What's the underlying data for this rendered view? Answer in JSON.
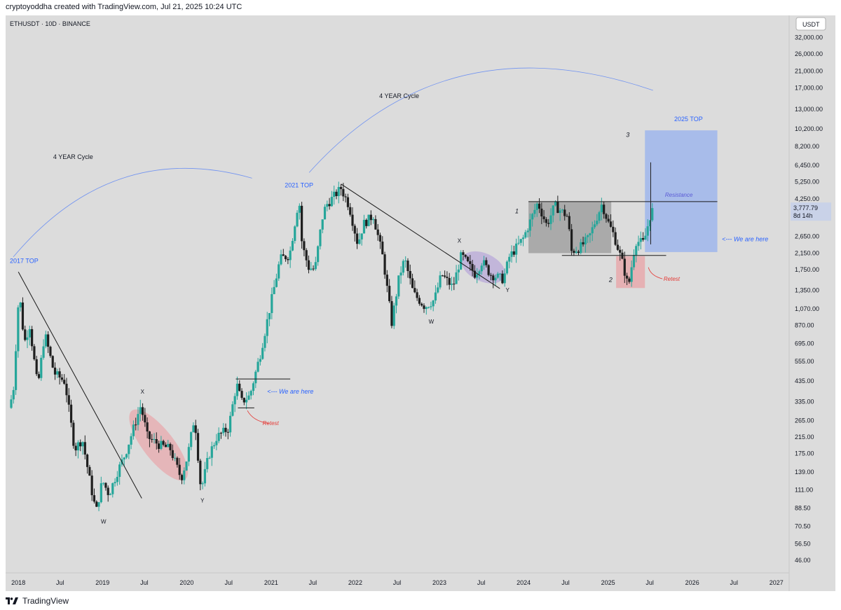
{
  "header": {
    "credit": "cryptoyoddha created with TradingView.com, Jul 21, 2025 10:24 UTC"
  },
  "symbol_line": "ETHUSDT · 10D · BINANCE",
  "currency_badge": "USDT",
  "footer": {
    "brand": "TradingView"
  },
  "colors": {
    "up": "#26a69a",
    "down": "#1f1f1f",
    "blue_text": "#2962ff",
    "red_text": "#e53935",
    "grey_zone": "#9e9e9e",
    "blue_zone": "#9fb6ec",
    "red_zone": "#e8a9ad",
    "purple_zone": "#b9a9da"
  },
  "chart_data": {
    "type": "candlestick",
    "y_scale": "log",
    "ylim": [
      40,
      40000
    ],
    "y_ticks": [
      "32,000.00",
      "26,000.00",
      "21,000.00",
      "17,000.00",
      "13,000.00",
      "10,200.00",
      "8,200.00",
      "6,450.00",
      "5,250.00",
      "4,250.00",
      "2,650.00",
      "2,150.00",
      "1,750.00",
      "1,350.00",
      "1,070.00",
      "870.00",
      "695.00",
      "555.00",
      "435.00",
      "335.00",
      "265.00",
      "215.00",
      "175.00",
      "139.00",
      "111.00",
      "88.50",
      "70.50",
      "56.50",
      "46.00"
    ],
    "x_ticks": [
      "2018",
      "Jul",
      "2019",
      "Jul",
      "2020",
      "Jul",
      "2021",
      "Jul",
      "2022",
      "Jul",
      "2023",
      "Jul",
      "2024",
      "Jul",
      "2025",
      "Jul",
      "2026",
      "Jul",
      "2027"
    ],
    "last_price": "3,777.79",
    "countdown": "8d 14h",
    "price_series": [
      [
        "2017-12-01",
        310
      ],
      [
        "2017-12-20",
        380
      ],
      [
        "2018-01-14",
        1350
      ],
      [
        "2018-02-06",
        700
      ],
      [
        "2018-03-01",
        870
      ],
      [
        "2018-04-05",
        400
      ],
      [
        "2018-05-05",
        790
      ],
      [
        "2018-06-15",
        480
      ],
      [
        "2018-08-01",
        430
      ],
      [
        "2018-09-12",
        185
      ],
      [
        "2018-10-15",
        210
      ],
      [
        "2018-11-25",
        110
      ],
      [
        "2018-12-14",
        84
      ],
      [
        "2019-01-10",
        125
      ],
      [
        "2019-02-08",
        105
      ],
      [
        "2019-03-15",
        138
      ],
      [
        "2019-04-20",
        175
      ],
      [
        "2019-06-26",
        320
      ],
      [
        "2019-07-25",
        215
      ],
      [
        "2019-09-15",
        195
      ],
      [
        "2019-11-01",
        185
      ],
      [
        "2019-12-18",
        128
      ],
      [
        "2020-01-15",
        170
      ],
      [
        "2020-02-14",
        280
      ],
      [
        "2020-03-13",
        110
      ],
      [
        "2020-04-15",
        170
      ],
      [
        "2020-05-20",
        215
      ],
      [
        "2020-07-10",
        240
      ],
      [
        "2020-08-14",
        420
      ],
      [
        "2020-09-05",
        335
      ],
      [
        "2020-10-10",
        360
      ],
      [
        "2020-11-24",
        600
      ],
      [
        "2021-01-10",
        1150
      ],
      [
        "2021-02-19",
        2000
      ],
      [
        "2021-04-01",
        2100
      ],
      [
        "2021-05-12",
        4300
      ],
      [
        "2021-05-25",
        2400
      ],
      [
        "2021-06-22",
        1800
      ],
      [
        "2021-07-20",
        1750
      ],
      [
        "2021-08-20",
        3300
      ],
      [
        "2021-09-05",
        3900
      ],
      [
        "2021-11-10",
        4850
      ],
      [
        "2021-12-15",
        3900
      ],
      [
        "2022-01-22",
        2400
      ],
      [
        "2022-02-15",
        3100
      ],
      [
        "2022-03-30",
        3450
      ],
      [
        "2022-05-12",
        2000
      ],
      [
        "2022-06-18",
        900
      ],
      [
        "2022-07-20",
        1600
      ],
      [
        "2022-08-13",
        2000
      ],
      [
        "2022-09-20",
        1300
      ],
      [
        "2022-11-09",
        1100
      ],
      [
        "2022-12-20",
        1200
      ],
      [
        "2023-01-20",
        1650
      ],
      [
        "2023-03-10",
        1400
      ],
      [
        "2023-04-16",
        2100
      ],
      [
        "2023-06-15",
        1650
      ],
      [
        "2023-07-15",
        1950
      ],
      [
        "2023-08-20",
        1650
      ],
      [
        "2023-10-15",
        1550
      ],
      [
        "2023-11-10",
        2050
      ],
      [
        "2024-01-10",
        2600
      ],
      [
        "2024-03-12",
        4050
      ],
      [
        "2024-04-20",
        3050
      ],
      [
        "2024-05-25",
        3900
      ],
      [
        "2024-07-20",
        3400
      ],
      [
        "2024-08-05",
        2200
      ],
      [
        "2024-09-10",
        2300
      ],
      [
        "2024-10-20",
        2600
      ],
      [
        "2024-12-16",
        4000
      ],
      [
        "2025-01-10",
        3200
      ],
      [
        "2025-02-05",
        2700
      ],
      [
        "2025-03-15",
        1900
      ],
      [
        "2025-04-09",
        1400
      ],
      [
        "2025-05-10",
        2500
      ],
      [
        "2025-06-15",
        2450
      ],
      [
        "2025-07-20",
        3780
      ]
    ],
    "annotations": {
      "cycle_label": "4 YEAR Cycle",
      "top_2017": "2017 TOP",
      "top_2021": "2021 TOP",
      "top_2025": "2025 TOP",
      "we_are_here": "<--- We are here",
      "retest": "Retest",
      "resistance": "Resistance",
      "label_x": "X",
      "label_y": "Y",
      "label_w": "W",
      "wave_1": "1",
      "wave_2": "2",
      "wave_3": "3"
    }
  }
}
